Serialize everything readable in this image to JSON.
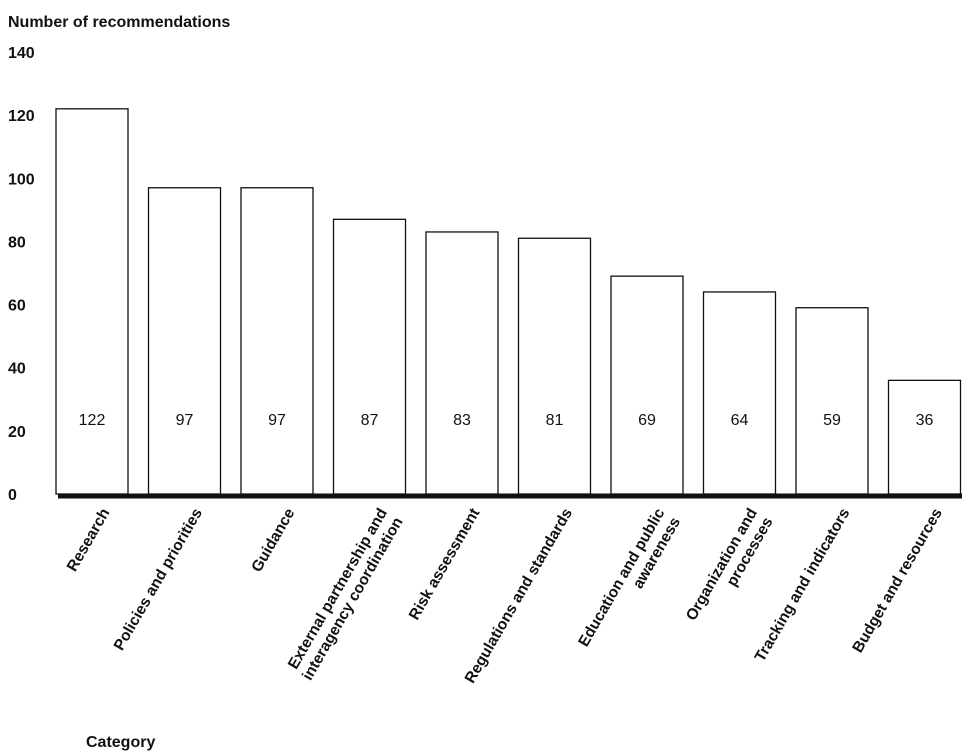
{
  "chart_data": {
    "type": "bar",
    "ylabel": "Number of recommendations",
    "xlabel": "Category",
    "ylim": [
      0,
      140
    ],
    "yticks": [
      "0",
      "20",
      "40",
      "60",
      "80",
      "100",
      "120",
      "140"
    ],
    "categories": [
      "Research",
      "Policies and priorities",
      "Guidance",
      "External partnership and interagency coordination",
      "Risk assessment",
      "Regulations and standards",
      "Education and public awareness",
      "Organization and processes",
      "Tracking and indicators",
      "Budget and resources"
    ],
    "category_lines": [
      [
        "Research"
      ],
      [
        "Policies and priorities"
      ],
      [
        "Guidance"
      ],
      [
        "External partnership and",
        "interagency coordination"
      ],
      [
        "Risk assessment"
      ],
      [
        "Regulations and standards"
      ],
      [
        "Education and public",
        "awareness"
      ],
      [
        "Organization and",
        "processes"
      ],
      [
        "Tracking and indicators"
      ],
      [
        "Budget and resources"
      ]
    ],
    "values": [
      122,
      97,
      97,
      87,
      83,
      81,
      69,
      64,
      59,
      36
    ],
    "value_labels": [
      "122",
      "97",
      "97",
      "87",
      "83",
      "81",
      "69",
      "64",
      "59",
      "36"
    ],
    "bar_fill": "#ffffff",
    "bar_stroke": "#111111",
    "grid": false,
    "legend": "none"
  }
}
